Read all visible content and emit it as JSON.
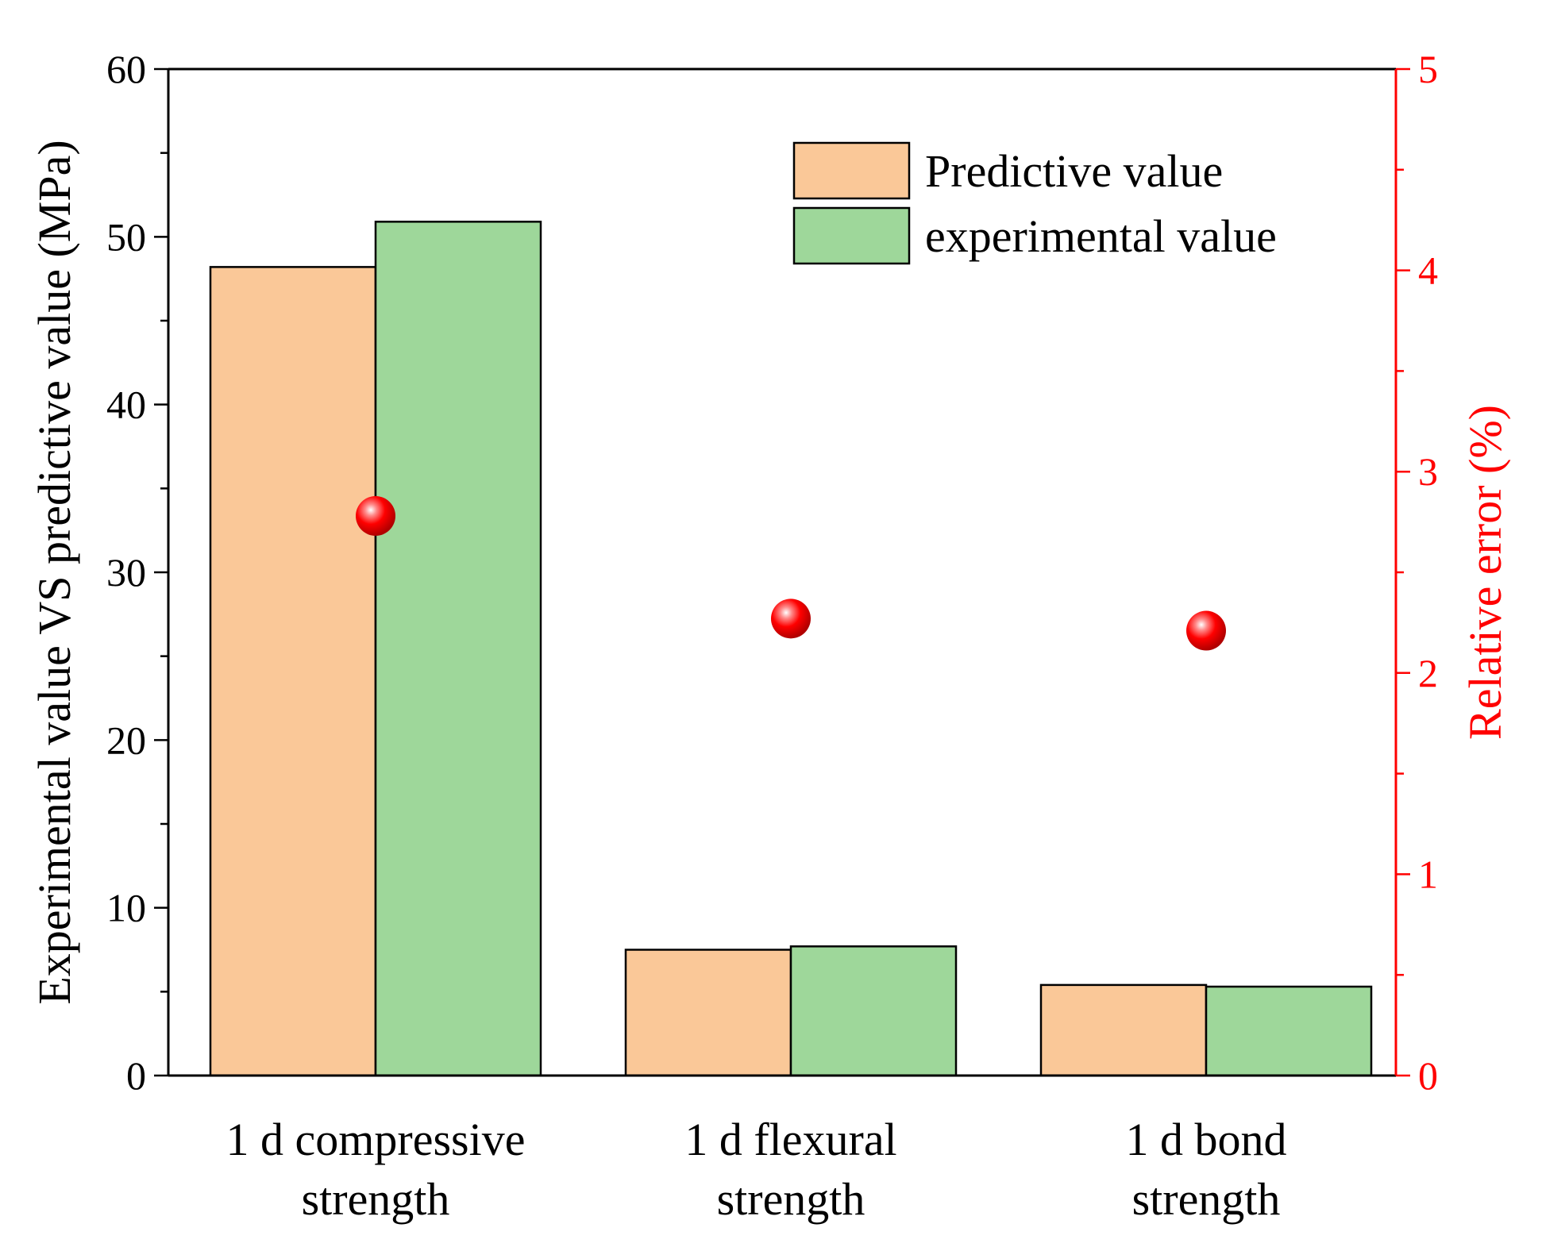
{
  "chart_data": {
    "type": "bar",
    "title": "",
    "categories": [
      [
        "1 d compressive",
        "strength"
      ],
      [
        "1 d flexural",
        "strength"
      ],
      [
        "1 d bond",
        "strength"
      ]
    ],
    "series": [
      {
        "name": "Predictive value",
        "values": [
          48.2,
          7.5,
          5.4
        ],
        "color": "#FAC898"
      },
      {
        "name": "experimental value",
        "values": [
          50.9,
          7.7,
          5.3
        ],
        "color": "#9ED79A"
      }
    ],
    "secondary_series": {
      "name": "Relative error",
      "type": "scatter",
      "axis": "right",
      "values": [
        2.78,
        2.27,
        2.21
      ],
      "color": "#FF0000"
    },
    "ylabel": "Experimental value VS predictive value (MPa)",
    "ylim": [
      0,
      60
    ],
    "yticks": [
      "0",
      "10",
      "20",
      "30",
      "40",
      "50",
      "60"
    ],
    "y2label": "Relative error (%)",
    "y2lim": [
      0,
      5
    ],
    "y2ticks": [
      "0",
      "1",
      "2",
      "3",
      "4",
      "5"
    ],
    "grid": false,
    "legend_position": "top-right",
    "colors": {
      "axis": "#000000",
      "secondary_axis": "#FF0000"
    }
  }
}
